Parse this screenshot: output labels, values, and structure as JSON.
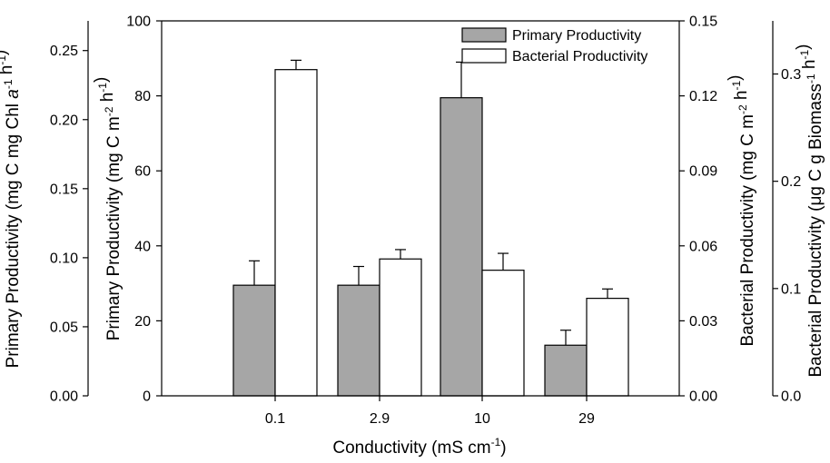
{
  "chart_data": {
    "type": "bar",
    "categories": [
      "0.1",
      "2.9",
      "10",
      "29"
    ],
    "series": [
      {
        "name": "Primary Productivity",
        "values": [
          29.5,
          29.5,
          79.5,
          13.5
        ],
        "errors": [
          6.5,
          5.0,
          9.5,
          4.0
        ],
        "color": "#a6a6a6"
      },
      {
        "name": "Bacterial Productivity",
        "values": [
          87,
          36.5,
          33.5,
          26
        ],
        "errors": [
          2.5,
          2.5,
          4.5,
          2.5
        ],
        "color": "#ffffff"
      }
    ],
    "xlabel": {
      "main": "Conductivity (mS cm",
      "sup": "-1",
      "end": ")"
    },
    "axes": {
      "primary_chl": {
        "parts": [
          {
            "t": "Primary Productivity (mg C mg Chl "
          },
          {
            "t": "a",
            "italic": true
          },
          {
            "t": "-1",
            "sup": true
          },
          {
            "t": " h"
          },
          {
            "t": "-1",
            "sup": true
          },
          {
            "t": ")"
          }
        ],
        "ticks": [
          "0.00",
          "0.05",
          "0.10",
          "0.15",
          "0.20",
          "0.25"
        ],
        "tick_values": [
          0,
          0.05,
          0.1,
          0.15,
          0.2,
          0.25
        ],
        "ylim": [
          0,
          0.2715
        ]
      },
      "primary_area": {
        "parts": [
          {
            "t": "Primary Productivity (mg C m"
          },
          {
            "t": "-2",
            "sup": true
          },
          {
            "t": " h"
          },
          {
            "t": "-1",
            "sup": true
          },
          {
            "t": ")"
          }
        ],
        "ticks": [
          "0",
          "20",
          "40",
          "60",
          "80",
          "100"
        ],
        "tick_values": [
          0,
          20,
          40,
          60,
          80,
          100
        ],
        "ylim": [
          0,
          100
        ]
      },
      "bacterial_area": {
        "parts": [
          {
            "t": "Bacterial Productivity (mg C m"
          },
          {
            "t": "-2",
            "sup": true
          },
          {
            "t": " h"
          },
          {
            "t": "-1",
            "sup": true
          },
          {
            "t": ")"
          }
        ],
        "ticks": [
          "0.00",
          "0.03",
          "0.06",
          "0.09",
          "0.12",
          "0.15"
        ],
        "tick_values": [
          0,
          0.03,
          0.06,
          0.09,
          0.12,
          0.15
        ],
        "ylim": [
          0,
          0.15
        ]
      },
      "bacterial_biomass": {
        "parts": [
          {
            "t": "Bacterial Productivity ("
          },
          {
            "t": "μ",
            "symbol": true
          },
          {
            "t": "g C g Biomass"
          },
          {
            "t": "-1",
            "sup": true
          },
          {
            "t": " h"
          },
          {
            "t": "-1",
            "sup": true
          },
          {
            "t": ")"
          }
        ],
        "ticks": [
          "0.0",
          "0.1",
          "0.2",
          "0.3"
        ],
        "tick_values": [
          0,
          0.1,
          0.2,
          0.3
        ],
        "ylim": [
          0,
          0.3495
        ]
      }
    },
    "legend_position": "top-right",
    "grid": false
  }
}
